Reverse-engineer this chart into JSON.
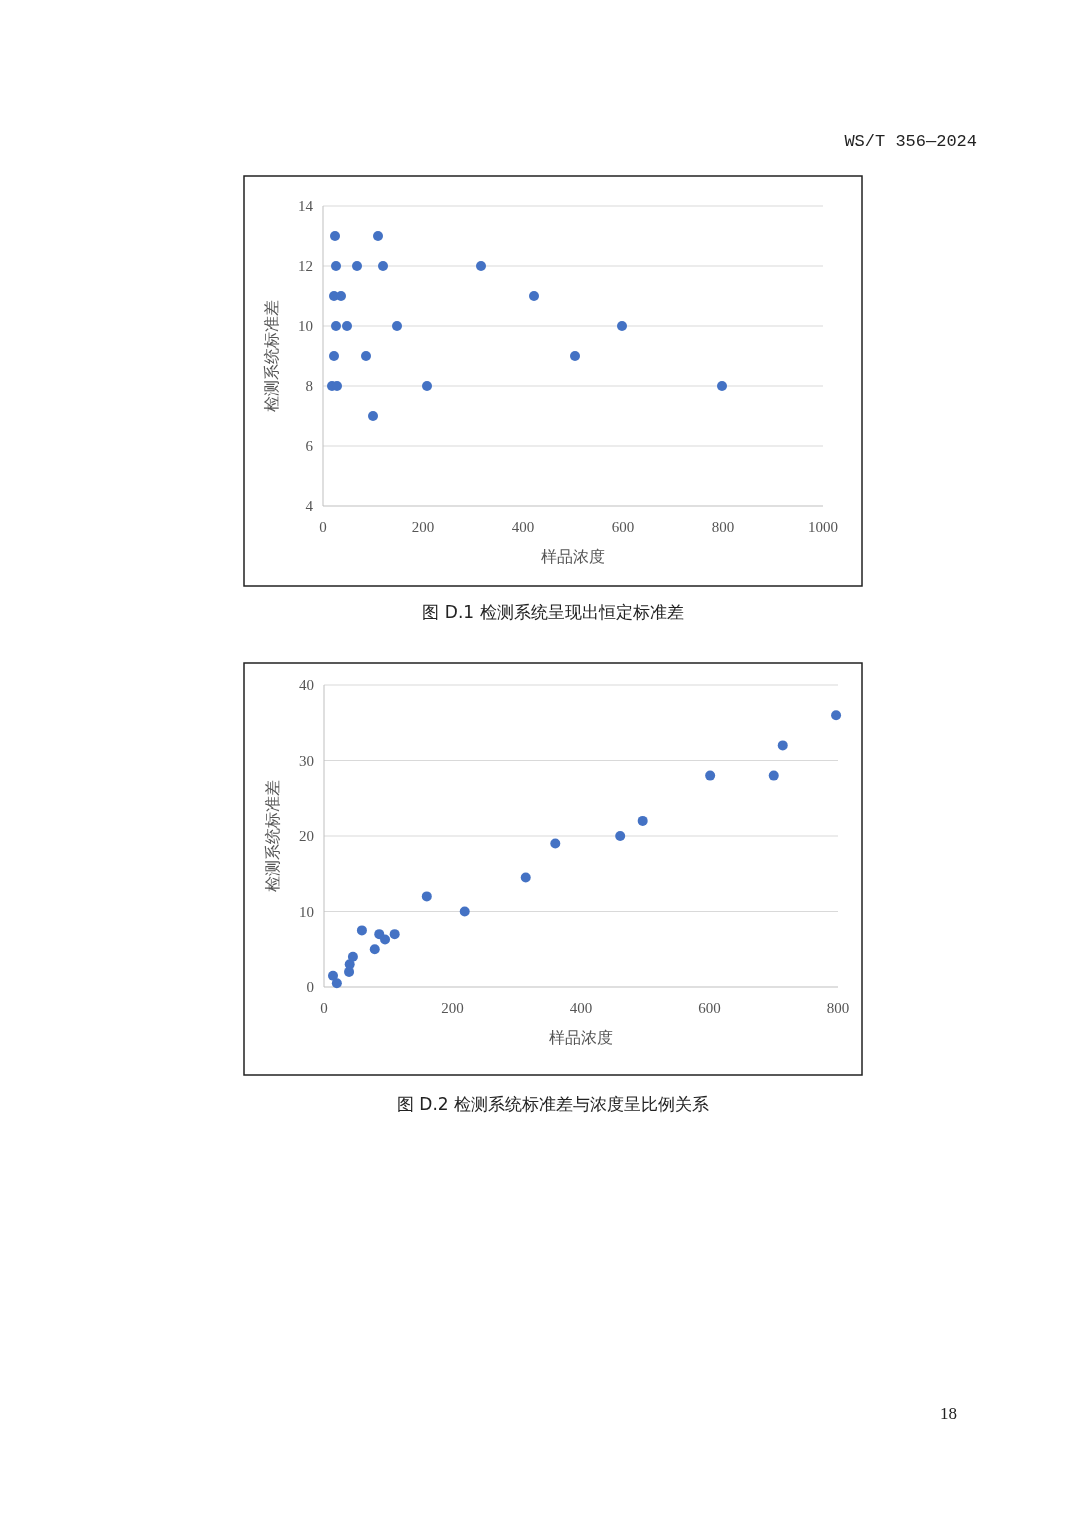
{
  "chart_data": [
    {
      "type": "scatter",
      "xlabel": "样品浓度",
      "ylabel": "检测系统标准差",
      "annotations": [
        "WS/T 356—2024",
        "图 D.1  检测系统呈现出恒定标准差"
      ],
      "x": [
        24,
        110,
        26,
        68,
        120,
        316,
        22,
        36,
        422,
        26,
        48,
        148,
        598,
        22,
        86,
        504,
        18,
        28,
        208,
        798,
        100
      ],
      "series": [
        {
          "color": "#4472c4",
          "values": [
            13,
            13,
            12,
            12,
            12,
            12,
            11,
            11,
            11,
            10,
            10,
            10,
            10,
            9,
            9,
            9,
            8,
            8,
            8,
            8,
            7
          ]
        }
      ],
      "xlim": [
        0,
        1000
      ],
      "ylim": [
        4,
        14
      ],
      "xticks": [
        0,
        200,
        400,
        600,
        800,
        1000
      ],
      "yticks": [
        4,
        6,
        8,
        10,
        12,
        14
      ],
      "grid": "y",
      "marker": "circle"
    },
    {
      "type": "scatter",
      "xlabel": "样品浓度",
      "ylabel": "检测系统标准差",
      "annotations": [
        "图 D.2  检测系统标准差与浓度呈比例关系",
        "18"
      ],
      "x": [
        14,
        20,
        39,
        40,
        45,
        59,
        79,
        86,
        95,
        110,
        160,
        219,
        314,
        360,
        461,
        496,
        601,
        700,
        714,
        797
      ],
      "series": [
        {
          "color": "#4472c4",
          "values": [
            1.5,
            0.5,
            2,
            3,
            4,
            7.5,
            5,
            7,
            6.3,
            7,
            12,
            10,
            14.5,
            19,
            20,
            22,
            28,
            28,
            32,
            36
          ]
        }
      ],
      "xlim": [
        0,
        800
      ],
      "ylim": [
        0,
        40
      ],
      "xticks": [
        0,
        200,
        400,
        600,
        800
      ],
      "yticks": [
        0,
        10,
        20,
        30,
        40
      ],
      "grid": "y",
      "marker": "circle"
    }
  ]
}
